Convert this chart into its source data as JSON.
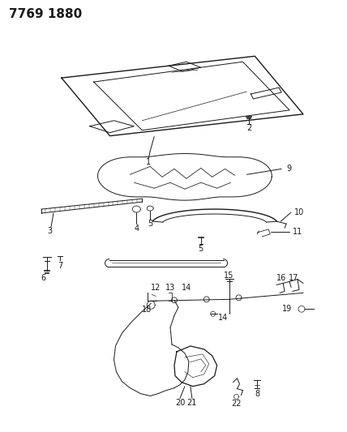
{
  "title": "7769 1880",
  "bg_color": "#ffffff",
  "line_color": "#1a1a1a",
  "title_fontsize": 11,
  "label_fontsize": 6.5,
  "fig_width": 4.28,
  "fig_height": 5.33,
  "dpi": 100
}
